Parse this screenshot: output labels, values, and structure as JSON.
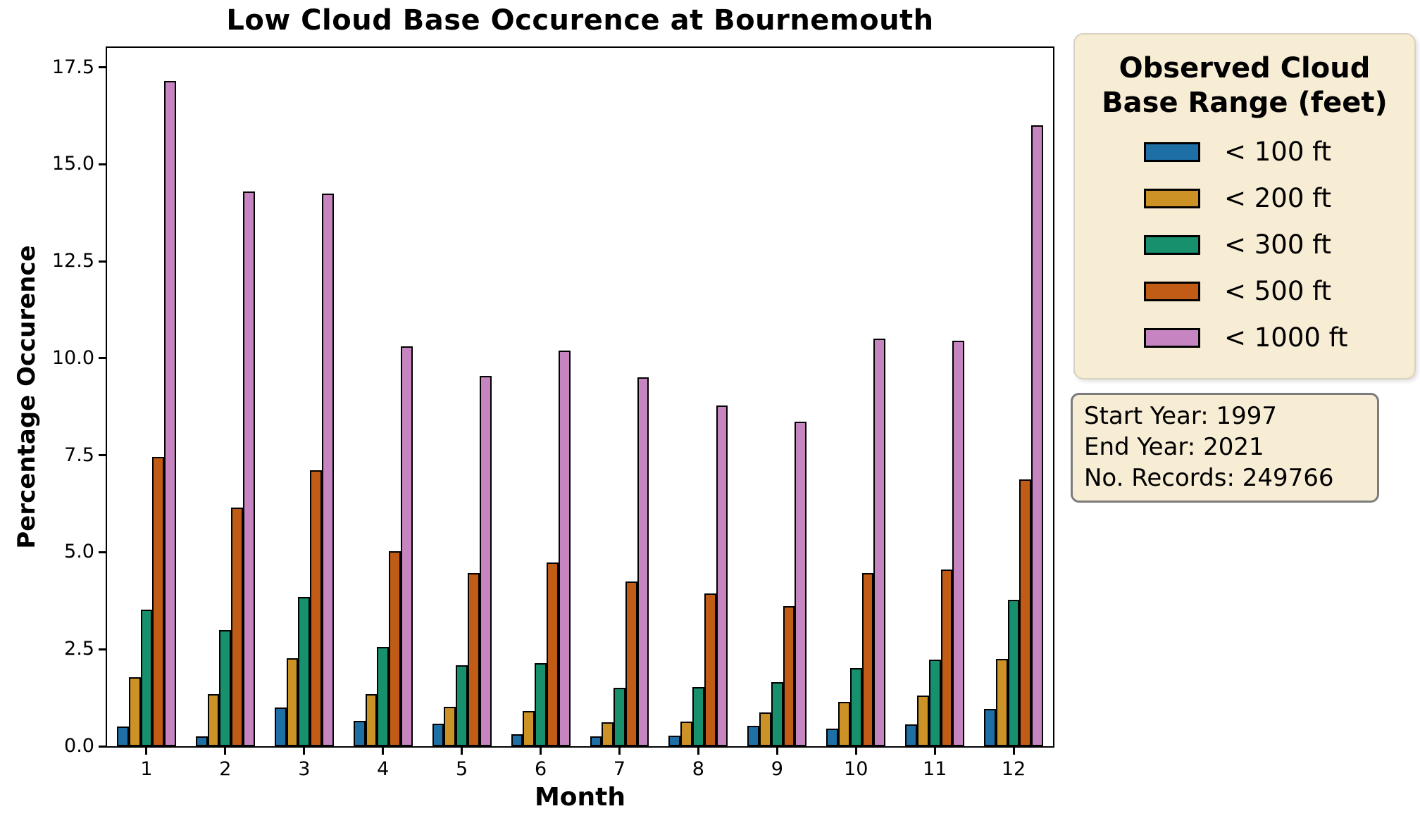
{
  "chart_data": {
    "type": "bar",
    "title": "Low Cloud Base Occurence at Bournemouth",
    "xlabel": "Month",
    "ylabel": "Percentage Occurence",
    "categories": [
      "1",
      "2",
      "3",
      "4",
      "5",
      "6",
      "7",
      "8",
      "9",
      "10",
      "11",
      "12"
    ],
    "ylim": [
      0,
      18
    ],
    "y_ticks": [
      0,
      2.5,
      5,
      7.5,
      10,
      12.5,
      15,
      17.5
    ],
    "y_tick_labels": [
      "0.0",
      "2.5",
      "5.0",
      "7.5",
      "10.0",
      "12.5",
      "15.0",
      "17.5"
    ],
    "grid": false,
    "legend_position": "outside upper right",
    "bar_edge_color": "#000000",
    "series": [
      {
        "name": "< 100 ft",
        "color": "#1e6fa5",
        "values": [
          0.5,
          0.26,
          1.0,
          0.65,
          0.58,
          0.31,
          0.25,
          0.27,
          0.53,
          0.45,
          0.57,
          0.96
        ]
      },
      {
        "name": "< 200 ft",
        "color": "#cc9226",
        "values": [
          1.78,
          1.35,
          2.26,
          1.34,
          1.01,
          0.9,
          0.62,
          0.63,
          0.88,
          1.15,
          1.31,
          2.25
        ]
      },
      {
        "name": "< 300 ft",
        "color": "#17916d",
        "values": [
          3.52,
          3.0,
          3.85,
          2.55,
          2.08,
          2.15,
          1.5,
          1.52,
          1.66,
          2.02,
          2.24,
          3.77
        ]
      },
      {
        "name": "< 500 ft",
        "color": "#c05c16",
        "values": [
          7.45,
          6.15,
          7.12,
          5.02,
          4.46,
          4.74,
          4.25,
          3.94,
          3.61,
          4.46,
          4.55,
          6.88
        ]
      },
      {
        "name": "< 1000 ft",
        "color": "#c685c1",
        "values": [
          17.15,
          14.3,
          14.25,
          10.3,
          9.55,
          10.2,
          9.5,
          8.78,
          8.37,
          10.5,
          10.45,
          16.0
        ]
      }
    ]
  },
  "legend": {
    "title": "Observed Cloud Base Range (feet)",
    "items": [
      {
        "label": "< 100 ft",
        "color": "#1e6fa5"
      },
      {
        "label": "< 200 ft",
        "color": "#cc9226"
      },
      {
        "label": "< 300 ft",
        "color": "#17916d"
      },
      {
        "label": "< 500 ft",
        "color": "#c05c16"
      },
      {
        "label": "< 1000 ft",
        "color": "#c685c1"
      }
    ]
  },
  "info_box": {
    "lines": [
      "Start Year: 1997",
      "End Year: 2021",
      "No. Records: 249766"
    ]
  },
  "colors": {
    "panel_background": "#f7ecd4",
    "plot_background": "#ffffff",
    "axis": "#000000",
    "info_border": "#7c7c7c"
  }
}
